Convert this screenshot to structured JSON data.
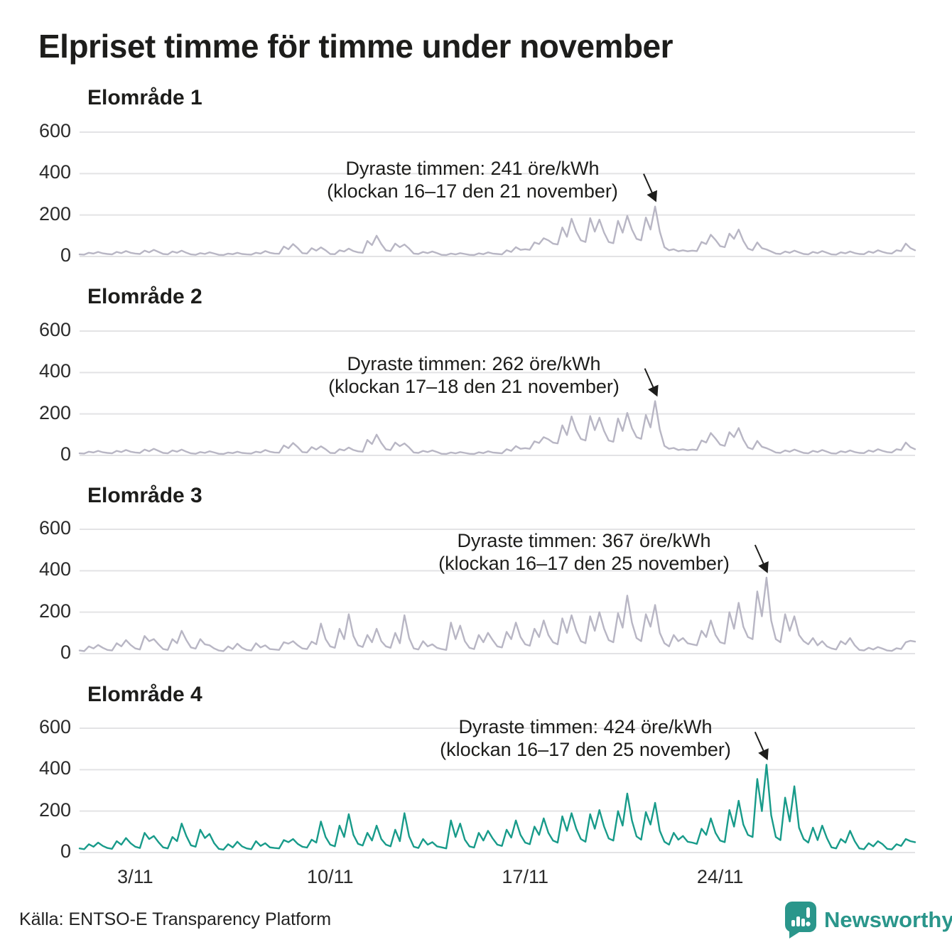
{
  "title": "Elpriset timme för timme under november",
  "source": "Källa: ENTSO-E Transparency Platform",
  "brand": {
    "name": "Newsworthy",
    "color": "#2a968b"
  },
  "colors": {
    "grid": "#e3e3e5",
    "text": "#1d1d1b",
    "tick_text": "#2b2b2b",
    "line_gray": "#b8b6c4",
    "line_teal": "#189b8a",
    "arrow": "#1d1d1b"
  },
  "axes": {
    "y_ticks": [
      600,
      400,
      200,
      0
    ],
    "y_max": 600,
    "y_unit": "öre/kWh",
    "x_ticks": [
      {
        "label": "3/11",
        "day": 3
      },
      {
        "label": "10/11",
        "day": 10
      },
      {
        "label": "17/11",
        "day": 17
      },
      {
        "label": "24/11",
        "day": 24
      }
    ]
  },
  "chart_data": [
    {
      "type": "line",
      "title": "Elområde 1",
      "color": "#b8b6c4",
      "step_hours": 4,
      "annotation": {
        "line1": "Dyraste timmen: 241 öre/kWh",
        "line2": "(klockan 16–17 den 21 november)",
        "value": 241,
        "day": 21,
        "hour": 16
      },
      "values": [
        10,
        9,
        18,
        14,
        22,
        15,
        12,
        10,
        22,
        16,
        26,
        18,
        14,
        12,
        28,
        20,
        32,
        22,
        12,
        10,
        24,
        18,
        28,
        18,
        10,
        8,
        16,
        12,
        20,
        14,
        8,
        7,
        14,
        11,
        18,
        12,
        10,
        9,
        18,
        14,
        26,
        18,
        14,
        13,
        48,
        35,
        60,
        40,
        16,
        14,
        40,
        28,
        44,
        30,
        12,
        11,
        30,
        24,
        38,
        26,
        20,
        18,
        75,
        55,
        100,
        60,
        30,
        26,
        62,
        45,
        58,
        38,
        14,
        12,
        22,
        16,
        24,
        16,
        8,
        7,
        14,
        10,
        16,
        12,
        8,
        7,
        15,
        11,
        20,
        14,
        12,
        10,
        30,
        22,
        45,
        32,
        35,
        32,
        68,
        60,
        88,
        78,
        62,
        58,
        140,
        95,
        182,
        120,
        78,
        70,
        185,
        120,
        178,
        115,
        70,
        64,
        172,
        115,
        196,
        130,
        85,
        78,
        188,
        130,
        241,
        120,
        45,
        30,
        35,
        25,
        30,
        25,
        28,
        26,
        70,
        60,
        105,
        80,
        50,
        45,
        110,
        85,
        130,
        75,
        38,
        30,
        68,
        40,
        34,
        24,
        14,
        12,
        24,
        18,
        28,
        20,
        12,
        10,
        22,
        16,
        26,
        18,
        10,
        9,
        20,
        15,
        24,
        16,
        12,
        11,
        24,
        18,
        30,
        22,
        16,
        14,
        30,
        26,
        62,
        40,
        30
      ]
    },
    {
      "type": "line",
      "title": "Elområde 2",
      "color": "#b8b6c4",
      "step_hours": 4,
      "annotation": {
        "line1": "Dyraste timmen: 262 öre/kWh",
        "line2": "(klockan 17–18 den 21 november)",
        "value": 262,
        "day": 21,
        "hour": 17
      },
      "values": [
        10,
        9,
        18,
        14,
        22,
        15,
        12,
        10,
        22,
        16,
        26,
        18,
        14,
        12,
        28,
        20,
        32,
        22,
        12,
        10,
        24,
        18,
        28,
        18,
        10,
        8,
        16,
        12,
        20,
        14,
        8,
        7,
        14,
        11,
        18,
        12,
        10,
        9,
        18,
        14,
        26,
        18,
        14,
        13,
        48,
        35,
        60,
        40,
        16,
        14,
        40,
        28,
        44,
        30,
        12,
        11,
        30,
        24,
        38,
        26,
        20,
        18,
        75,
        55,
        100,
        60,
        30,
        26,
        62,
        45,
        58,
        38,
        14,
        12,
        22,
        16,
        24,
        16,
        8,
        7,
        14,
        10,
        16,
        12,
        8,
        7,
        15,
        11,
        20,
        14,
        12,
        10,
        30,
        22,
        45,
        32,
        35,
        32,
        68,
        60,
        88,
        78,
        62,
        58,
        145,
        98,
        188,
        122,
        80,
        72,
        190,
        122,
        182,
        118,
        72,
        66,
        178,
        118,
        205,
        132,
        88,
        80,
        195,
        135,
        262,
        125,
        46,
        32,
        36,
        26,
        30,
        25,
        28,
        26,
        72,
        62,
        108,
        82,
        52,
        46,
        112,
        88,
        132,
        76,
        38,
        30,
        70,
        42,
        35,
        25,
        14,
        12,
        24,
        18,
        28,
        20,
        12,
        10,
        22,
        16,
        26,
        18,
        10,
        9,
        20,
        15,
        24,
        16,
        12,
        11,
        24,
        18,
        30,
        22,
        16,
        14,
        30,
        26,
        62,
        40,
        30
      ]
    },
    {
      "type": "line",
      "title": "Elområde 3",
      "color": "#b8b6c4",
      "step_hours": 4,
      "annotation": {
        "line1": "Dyraste timmen: 367 öre/kWh",
        "line2": "(klockan 16–17 den 25 november)",
        "value": 367,
        "day": 25,
        "hour": 16
      },
      "values": [
        15,
        12,
        35,
        25,
        42,
        28,
        18,
        15,
        50,
        35,
        65,
        42,
        25,
        20,
        85,
        60,
        70,
        45,
        22,
        18,
        70,
        50,
        110,
        65,
        30,
        24,
        70,
        45,
        40,
        25,
        15,
        12,
        35,
        22,
        48,
        28,
        18,
        15,
        50,
        30,
        40,
        22,
        20,
        18,
        55,
        48,
        60,
        40,
        25,
        22,
        58,
        45,
        145,
        70,
        35,
        28,
        120,
        70,
        190,
        85,
        40,
        32,
        90,
        55,
        120,
        60,
        35,
        28,
        100,
        50,
        185,
        75,
        25,
        20,
        60,
        35,
        45,
        28,
        22,
        18,
        150,
        70,
        135,
        60,
        28,
        22,
        90,
        55,
        100,
        65,
        35,
        30,
        105,
        70,
        150,
        80,
        45,
        38,
        120,
        80,
        160,
        90,
        55,
        45,
        170,
        100,
        185,
        110,
        60,
        50,
        180,
        110,
        200,
        120,
        65,
        55,
        195,
        125,
        280,
        150,
        75,
        60,
        190,
        130,
        235,
        100,
        50,
        35,
        90,
        60,
        75,
        50,
        45,
        40,
        110,
        80,
        160,
        90,
        55,
        48,
        200,
        120,
        245,
        130,
        80,
        70,
        300,
        180,
        367,
        160,
        70,
        55,
        190,
        110,
        180,
        90,
        60,
        45,
        75,
        40,
        60,
        35,
        25,
        20,
        60,
        45,
        75,
        40,
        18,
        15,
        28,
        20,
        32,
        24,
        15,
        13,
        26,
        22,
        55,
        62,
        58
      ]
    },
    {
      "type": "line",
      "title": "Elområde 4",
      "color": "#189b8a",
      "step_hours": 4,
      "annotation": {
        "line1": "Dyraste timmen: 424 öre/kWh",
        "line2": "(klockan 16–17 den 25 november)",
        "value": 424,
        "day": 25,
        "hour": 16
      },
      "values": [
        20,
        16,
        40,
        28,
        48,
        32,
        22,
        18,
        55,
        38,
        70,
        45,
        28,
        22,
        95,
        65,
        80,
        50,
        25,
        20,
        75,
        55,
        140,
        80,
        35,
        28,
        110,
        70,
        90,
        45,
        18,
        14,
        40,
        25,
        52,
        30,
        20,
        16,
        55,
        32,
        45,
        25,
        22,
        20,
        60,
        50,
        65,
        42,
        28,
        24,
        62,
        48,
        150,
        75,
        38,
        30,
        130,
        75,
        185,
        85,
        42,
        34,
        95,
        58,
        130,
        65,
        38,
        30,
        110,
        55,
        190,
        78,
        28,
        22,
        65,
        38,
        50,
        30,
        25,
        20,
        155,
        75,
        140,
        62,
        30,
        24,
        95,
        58,
        105,
        68,
        38,
        32,
        110,
        72,
        155,
        85,
        48,
        40,
        125,
        85,
        165,
        95,
        58,
        48,
        175,
        105,
        190,
        115,
        65,
        52,
        185,
        115,
        205,
        125,
        68,
        58,
        200,
        130,
        285,
        155,
        78,
        62,
        195,
        135,
        240,
        105,
        52,
        38,
        95,
        62,
        80,
        52,
        48,
        42,
        115,
        85,
        165,
        95,
        58,
        50,
        205,
        125,
        250,
        135,
        85,
        75,
        355,
        200,
        424,
        180,
        75,
        60,
        265,
        150,
        320,
        120,
        65,
        48,
        120,
        60,
        130,
        70,
        25,
        20,
        65,
        48,
        105,
        55,
        20,
        16,
        45,
        30,
        55,
        40,
        18,
        15,
        40,
        32,
        65,
        55,
        50
      ]
    }
  ]
}
